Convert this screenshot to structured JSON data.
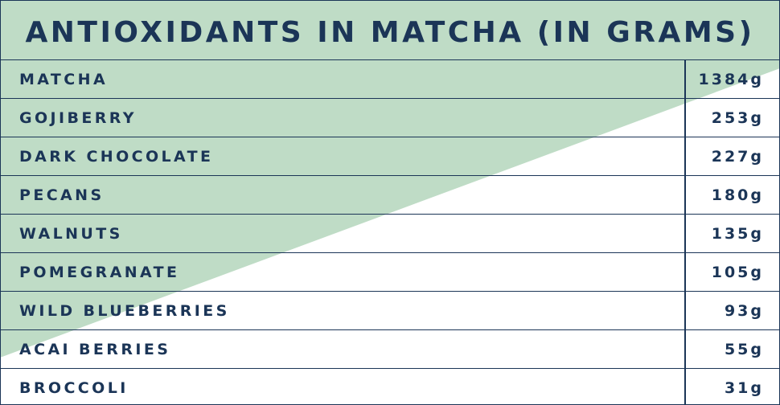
{
  "colors": {
    "accent_green": "#bfdcc6",
    "text_navy": "#1b3557",
    "background": "#ffffff"
  },
  "chart_data": {
    "type": "table",
    "title": "ANTIOXIDANTS IN MATCHA (IN GRAMS)",
    "rows": [
      {
        "label": "MATCHA",
        "value": 1384,
        "display": "1384g"
      },
      {
        "label": "GOJIBERRY",
        "value": 253,
        "display": "253g"
      },
      {
        "label": "DARK CHOCOLATE",
        "value": 227,
        "display": "227g"
      },
      {
        "label": "PECANS",
        "value": 180,
        "display": "180g"
      },
      {
        "label": "WALNUTS",
        "value": 135,
        "display": "135g"
      },
      {
        "label": "POMEGRANATE",
        "value": 105,
        "display": "105g"
      },
      {
        "label": "WILD BLUEBERRIES",
        "value": 93,
        "display": "93g"
      },
      {
        "label": "ACAI BERRIES",
        "value": 55,
        "display": "55g"
      },
      {
        "label": "BROCCOLI",
        "value": 31,
        "display": "31g"
      }
    ]
  }
}
